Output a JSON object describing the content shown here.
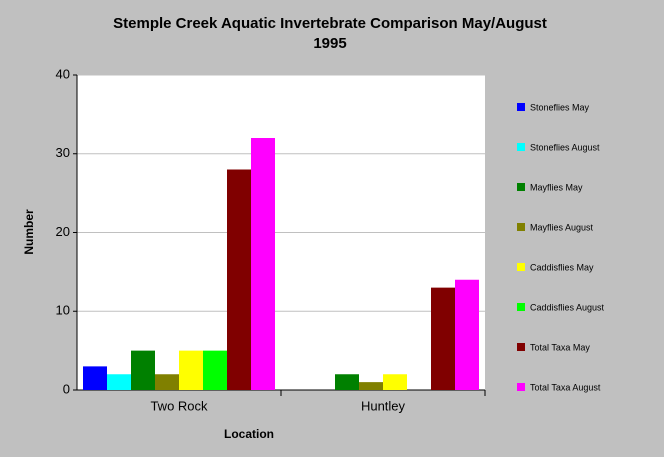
{
  "chart_data": {
    "type": "bar",
    "title": [
      "Stemple Creek Aquatic Invertebrate Comparison May/August",
      "1995"
    ],
    "xlabel": "Location",
    "ylabel": "Number",
    "categories": [
      "Two Rock",
      "Huntley"
    ],
    "series": [
      {
        "name": "Stoneflies May",
        "color": "#0000ff",
        "values": [
          3,
          0
        ]
      },
      {
        "name": "Stoneflies August",
        "color": "#00ffff",
        "values": [
          2,
          0
        ]
      },
      {
        "name": "Mayflies May",
        "color": "#008000",
        "values": [
          5,
          2
        ]
      },
      {
        "name": "Mayflies August",
        "color": "#808000",
        "values": [
          2,
          1
        ]
      },
      {
        "name": "Caddisflies May",
        "color": "#ffff00",
        "values": [
          5,
          2
        ]
      },
      {
        "name": "Caddisflies August",
        "color": "#00ff00",
        "values": [
          5,
          0
        ]
      },
      {
        "name": "Total Taxa May",
        "color": "#800000",
        "values": [
          28,
          13
        ]
      },
      {
        "name": "Total Taxa August",
        "color": "#ff00ff",
        "values": [
          32,
          14
        ]
      }
    ],
    "ylim": [
      0,
      40
    ],
    "yticks": [
      0,
      10,
      20,
      30,
      40
    ],
    "grid": true,
    "legend": "right"
  }
}
